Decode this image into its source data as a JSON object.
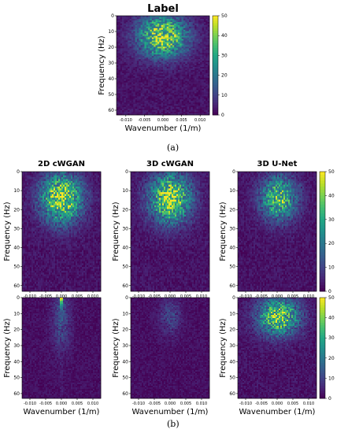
{
  "figure": {
    "subcaption_a": "(a)",
    "subcaption_b": "(b)"
  },
  "colorbar": {
    "ticks": [
      0,
      10,
      20,
      30,
      40,
      50
    ],
    "range": [
      0,
      50
    ],
    "colormap": "viridis"
  },
  "chart_data": [
    {
      "type": "heatmap",
      "title": "Label",
      "xlabel": "Wavenumber (1/m)",
      "ylabel": "Frequency (Hz)",
      "xticks": [
        "-0.010",
        "-0.005",
        "0.000",
        "0.005",
        "0.010"
      ],
      "yticks": [
        0,
        10,
        20,
        30,
        40,
        50,
        60
      ],
      "xlim": [
        -0.0125,
        0.0125
      ],
      "ylim": [
        63,
        0
      ],
      "zlim": [
        0,
        50
      ],
      "pattern": {
        "peak": 50,
        "center_k": 0.0,
        "center_f": 13,
        "spread_k": 0.0045,
        "spread_f": 9,
        "background": 5
      }
    },
    {
      "type": "heatmap",
      "title": "2D cWGAN",
      "xlabel": "Wavenumber (1/m)",
      "ylabel": "Frequency (Hz)",
      "xticks": [
        "-0.010",
        "-0.005",
        "0.000",
        "0.005",
        "0.010"
      ],
      "yticks": [
        0,
        10,
        20,
        30,
        40,
        50,
        60
      ],
      "xlim": [
        -0.0125,
        0.0125
      ],
      "ylim": [
        63,
        0
      ],
      "zlim": [
        0,
        50
      ],
      "pattern": {
        "peak": 50,
        "center_k": 0.0,
        "center_f": 14,
        "spread_k": 0.0045,
        "spread_f": 9,
        "background": 5
      }
    },
    {
      "type": "heatmap",
      "title": "3D cWGAN",
      "xlabel": "Wavenumber (1/m)",
      "ylabel": "Frequency (Hz)",
      "xticks": [
        "-0.010",
        "-0.005",
        "0.000",
        "0.005",
        "0.010"
      ],
      "yticks": [
        0,
        10,
        20,
        30,
        40,
        50,
        60
      ],
      "xlim": [
        -0.0125,
        0.0125
      ],
      "ylim": [
        63,
        0
      ],
      "zlim": [
        0,
        50
      ],
      "pattern": {
        "peak": 50,
        "center_k": 0.0,
        "center_f": 14,
        "spread_k": 0.0045,
        "spread_f": 9,
        "background": 5
      }
    },
    {
      "type": "heatmap",
      "title": "3D U-Net",
      "xlabel": "Wavenumber (1/m)",
      "ylabel": "Frequency (Hz)",
      "xticks": [
        "-0.010",
        "-0.005",
        "0.000",
        "0.005",
        "0.010"
      ],
      "yticks": [
        0,
        10,
        20,
        30,
        40,
        50,
        60
      ],
      "xlim": [
        -0.0125,
        0.0125
      ],
      "ylim": [
        63,
        0
      ],
      "zlim": [
        0,
        50
      ],
      "pattern": {
        "peak": 40,
        "center_k": 0.0005,
        "center_f": 14,
        "spread_k": 0.004,
        "spread_f": 8,
        "background": 5
      }
    },
    {
      "type": "heatmap",
      "title": "",
      "xlabel": "Wavenumber (1/m)",
      "ylabel": "Frequency (Hz)",
      "xticks": [
        "-0.010",
        "-0.005",
        "0.000",
        "0.005",
        "0.010"
      ],
      "yticks": [
        0,
        10,
        20,
        30,
        40,
        50,
        60
      ],
      "xlim": [
        -0.0125,
        0.0125
      ],
      "ylim": [
        63,
        0
      ],
      "zlim": [
        0,
        50
      ],
      "pattern": {
        "peak": 12,
        "center_k": 0.0,
        "center_f": 14,
        "spread_k": 0.002,
        "spread_f": 14,
        "background": 4,
        "ridge": 50
      }
    },
    {
      "type": "heatmap",
      "title": "",
      "xlabel": "Wavenumber (1/m)",
      "ylabel": "Frequency (Hz)",
      "xticks": [
        "-0.010",
        "-0.005",
        "0.000",
        "0.005",
        "0.010"
      ],
      "yticks": [
        0,
        10,
        20,
        30,
        40,
        50,
        60
      ],
      "xlim": [
        -0.0125,
        0.0125
      ],
      "ylim": [
        63,
        0
      ],
      "zlim": [
        0,
        50
      ],
      "pattern": {
        "peak": 10,
        "center_k": 0.0,
        "center_f": 12,
        "spread_k": 0.0025,
        "spread_f": 8,
        "background": 4
      }
    },
    {
      "type": "heatmap",
      "title": "",
      "xlabel": "Wavenumber (1/m)",
      "ylabel": "Frequency (Hz)",
      "xticks": [
        "-0.010",
        "-0.005",
        "0.000",
        "0.005",
        "0.010"
      ],
      "yticks": [
        0,
        10,
        20,
        30,
        40,
        50,
        60
      ],
      "xlim": [
        -0.0125,
        0.0125
      ],
      "ylim": [
        63,
        0
      ],
      "zlim": [
        0,
        50
      ],
      "pattern": {
        "peak": 45,
        "center_k": 0.0005,
        "center_f": 12,
        "spread_k": 0.0045,
        "spread_f": 8,
        "background": 5
      }
    }
  ]
}
